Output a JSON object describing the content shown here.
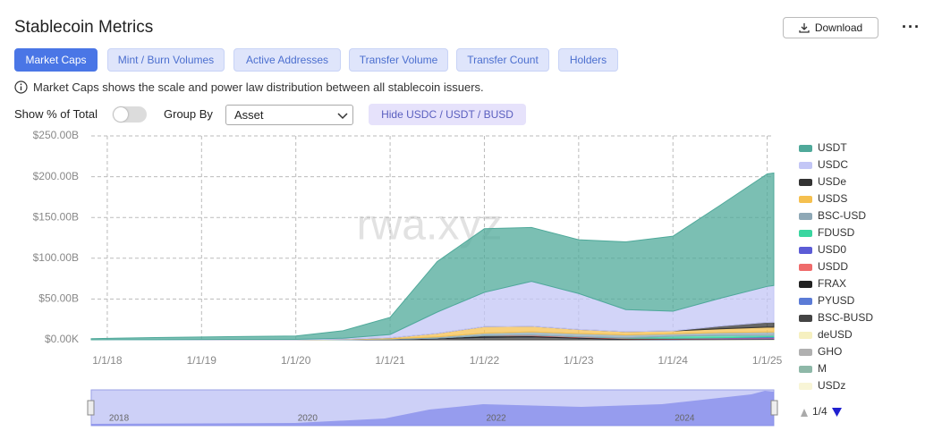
{
  "header": {
    "title": "Stablecoin Metrics",
    "download": "Download"
  },
  "tabs": [
    "Market Caps",
    "Mint / Burn Volumes",
    "Active Addresses",
    "Transfer Volume",
    "Transfer Count",
    "Holders"
  ],
  "info": "Market Caps shows the scale and power law distribution between all stablecoin issuers.",
  "controls": {
    "show_pct": "Show % of Total",
    "group_by": "Group By",
    "group_value": "Asset",
    "hide_button": "Hide USDC / USDT / BUSD"
  },
  "chart_data": {
    "type": "area",
    "stacked": true,
    "watermark": "rwa.xyz",
    "grid": true,
    "legend_page": "1/4",
    "x": [
      2017.83,
      2018.5,
      2019.5,
      2020.0,
      2020.5,
      2021.0,
      2021.5,
      2022.0,
      2022.5,
      2023.0,
      2023.5,
      2024.0,
      2024.5,
      2025.0,
      2025.07
    ],
    "xlim": [
      2017.83,
      2025.07
    ],
    "xticks": [
      {
        "value": 2018,
        "label": "1/1/18"
      },
      {
        "value": 2019,
        "label": "1/1/19"
      },
      {
        "value": 2020,
        "label": "1/1/20"
      },
      {
        "value": 2021,
        "label": "1/1/21"
      },
      {
        "value": 2022,
        "label": "1/1/22"
      },
      {
        "value": 2023,
        "label": "1/1/23"
      },
      {
        "value": 2024,
        "label": "1/1/24"
      },
      {
        "value": 2025,
        "label": "1/1/25"
      }
    ],
    "ylim": [
      0,
      250
    ],
    "yticks": [
      {
        "value": 0,
        "label": "$0.00K"
      },
      {
        "value": 50,
        "label": "$50.00B"
      },
      {
        "value": 100,
        "label": "$100.00B"
      },
      {
        "value": 150,
        "label": "$150.00B"
      },
      {
        "value": 200,
        "label": "$200.00B"
      },
      {
        "value": 250,
        "label": "$250.00B"
      }
    ],
    "navigator_ticks": [
      2018,
      2020,
      2022,
      2024
    ],
    "series": [
      {
        "name": "USDT",
        "color": "#4fa99a",
        "values": [
          1.4,
          2.6,
          3.5,
          4.1,
          9.2,
          21,
          62,
          78,
          66,
          66,
          83,
          92,
          114,
          138,
          138
        ]
      },
      {
        "name": "USDC",
        "color": "#c3c6f6",
        "values": [
          0,
          0.2,
          0.5,
          0.5,
          1.1,
          4,
          26,
          42,
          55,
          44,
          27,
          24,
          34,
          44,
          45
        ]
      },
      {
        "name": "USDe",
        "color": "#333333",
        "values": [
          0,
          0,
          0,
          0,
          0,
          0,
          0,
          0,
          0,
          0,
          0,
          0.1,
          3.5,
          5.9,
          6
        ]
      },
      {
        "name": "USDS",
        "color": "#f5c04f",
        "values": [
          0,
          0,
          0.1,
          0.1,
          0.3,
          1.2,
          4.5,
          8,
          7,
          5,
          4,
          3.5,
          4.5,
          6,
          6
        ]
      },
      {
        "name": "BSC-USD",
        "color": "#8ea8b6",
        "values": [
          0,
          0,
          0,
          0,
          0.2,
          0.5,
          1.5,
          3,
          4,
          4,
          3.5,
          3,
          3.5,
          4,
          4
        ]
      },
      {
        "name": "FDUSD",
        "color": "#3ad6a0",
        "values": [
          0,
          0,
          0,
          0,
          0,
          0,
          0,
          0,
          0,
          0,
          0.5,
          2.5,
          3,
          2,
          2
        ]
      },
      {
        "name": "USD0",
        "color": "#5c5cd6",
        "values": [
          0,
          0,
          0,
          0,
          0,
          0,
          0,
          0,
          0,
          0,
          0,
          0,
          0.3,
          1.4,
          1.4
        ]
      },
      {
        "name": "USDD",
        "color": "#ef6b6b",
        "values": [
          0,
          0,
          0,
          0,
          0,
          0,
          0,
          0,
          0.7,
          0.7,
          0.7,
          0.7,
          0.7,
          0.7,
          0.7
        ]
      },
      {
        "name": "FRAX",
        "color": "#222222",
        "values": [
          0,
          0,
          0,
          0,
          0.1,
          0.3,
          0.5,
          2.2,
          1.5,
          1,
          0.8,
          0.6,
          0.4,
          0.3,
          0.3
        ]
      },
      {
        "name": "PYUSD",
        "color": "#5b7bd6",
        "values": [
          0,
          0,
          0,
          0,
          0,
          0,
          0,
          0,
          0,
          0,
          0,
          0.3,
          0.5,
          0.5,
          0.5
        ]
      },
      {
        "name": "BSC-BUSD",
        "color": "#444444",
        "values": [
          0,
          0,
          0,
          0,
          0.2,
          0.5,
          1.5,
          3,
          3.5,
          2,
          0.5,
          0.3,
          0.2,
          0.1,
          0.1
        ]
      },
      {
        "name": "deUSD",
        "color": "#f6f0c0",
        "values": [
          0,
          0,
          0,
          0,
          0,
          0,
          0,
          0,
          0,
          0,
          0,
          0,
          0.2,
          0.3,
          0.3
        ]
      },
      {
        "name": "GHO",
        "color": "#b0b0b0",
        "values": [
          0,
          0,
          0,
          0,
          0,
          0,
          0,
          0,
          0,
          0,
          0.03,
          0.03,
          0.07,
          0.15,
          0.15
        ]
      },
      {
        "name": "M",
        "color": "#8eb8a8",
        "values": [
          0,
          0,
          0,
          0,
          0,
          0,
          0,
          0,
          0,
          0,
          0,
          0,
          0.02,
          0.07,
          0.07
        ]
      },
      {
        "name": "USDz",
        "color": "#f8f5d6",
        "values": [
          0,
          0,
          0,
          0,
          0,
          0,
          0,
          0,
          0,
          0,
          0,
          0,
          0.01,
          0.03,
          0.03
        ]
      }
    ]
  }
}
